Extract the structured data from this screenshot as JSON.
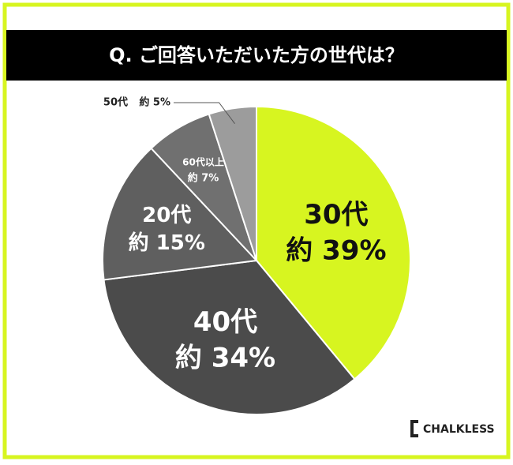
{
  "chart_data": {
    "type": "pie",
    "title": "Q. ご回答いただいた方の世代は？",
    "categories": [
      "30代",
      "40代",
      "20代",
      "60代以上",
      "50代"
    ],
    "values": [
      39,
      34,
      15,
      7,
      5
    ],
    "value_labels": [
      "約 39%",
      "約 34%",
      "約 15%",
      "約 7%",
      "約 5%"
    ],
    "colors": [
      "#d7f520",
      "#4b4b4b",
      "#5f5f5f",
      "#707070",
      "#9c9c9c"
    ]
  },
  "logo": "CHALKLESS"
}
